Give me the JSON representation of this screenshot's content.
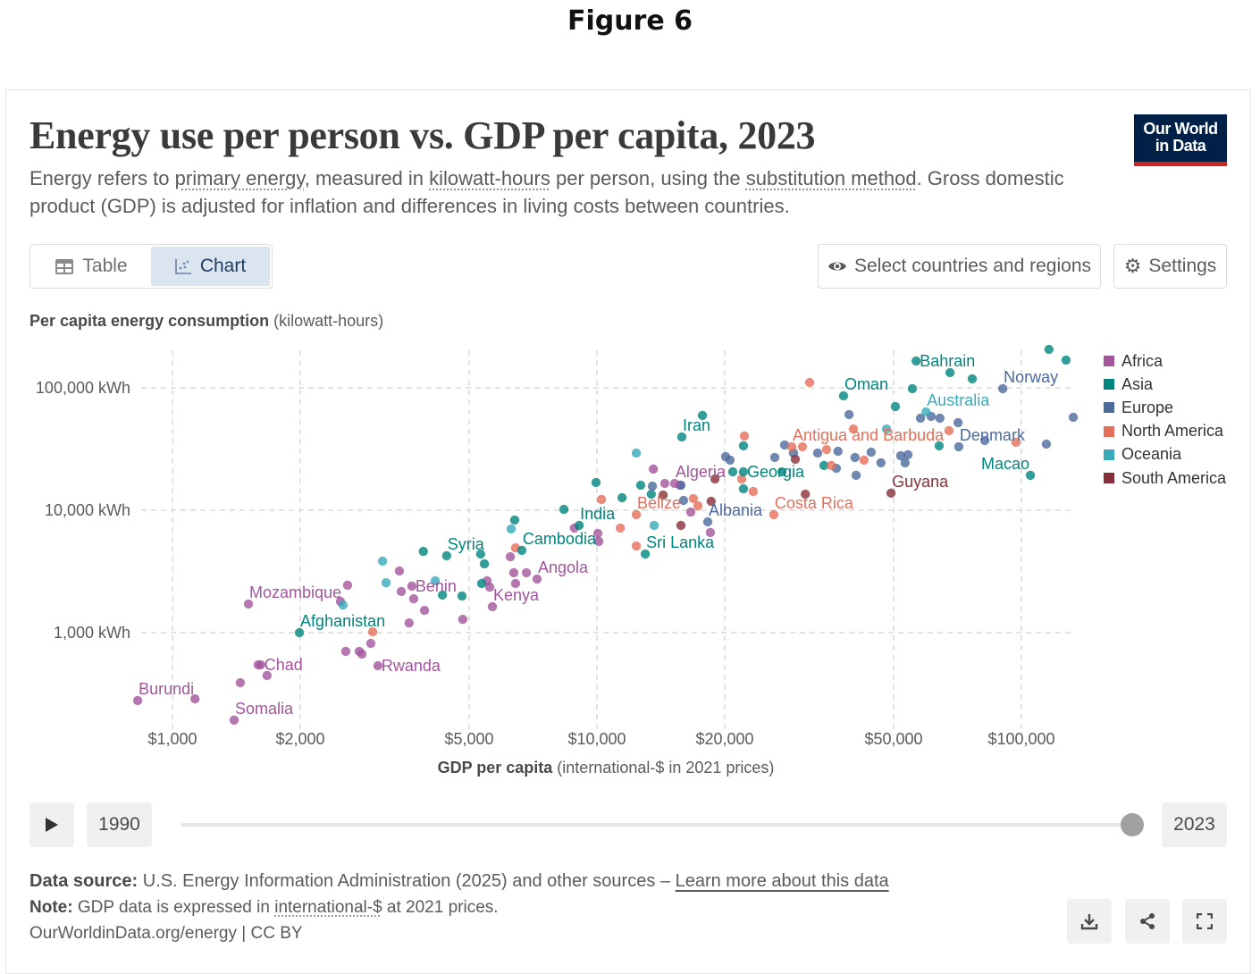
{
  "figure_label": "Figure 6",
  "logo": {
    "line1": "Our World",
    "line2": "in Data"
  },
  "header": {
    "title": "Energy use per person vs. GDP per capita, 2023",
    "subtitle_parts": [
      "Energy refers to ",
      "primary energy",
      ", measured in ",
      "kilowatt-hours",
      " per person, using the ",
      "substitution method",
      ". Gross domestic product (GDP) is adjusted for inflation and differences in living costs between countries."
    ]
  },
  "toolbar": {
    "table_label": "Table",
    "chart_label": "Chart",
    "select_label": "Select countries and regions",
    "settings_label": "Settings"
  },
  "colors": {
    "Africa": "#a2559c",
    "Asia": "#00847e",
    "Europe": "#4c6a9c",
    "North America": "#e56e5a",
    "Oceania": "#38aaba",
    "South America": "#883039",
    "accent": "#002147",
    "logo_bar": "#ce261e"
  },
  "chart_data": {
    "type": "scatter",
    "title": "Energy use per person vs. GDP per capita, 2023",
    "ylabel_bold": "Per capita energy consumption",
    "ylabel_unit": "(kilowatt-hours)",
    "xlabel_bold": "GDP per capita",
    "xlabel_unit": "(international-$ in 2021 prices)",
    "xscale": "log",
    "yscale": "log",
    "xlim": [
      780,
      150000
    ],
    "ylim": [
      180,
      220000
    ],
    "xticks": [
      {
        "v": 1000,
        "label": "$1,000"
      },
      {
        "v": 2000,
        "label": "$2,000"
      },
      {
        "v": 5000,
        "label": "$5,000"
      },
      {
        "v": 10000,
        "label": "$10,000"
      },
      {
        "v": 20000,
        "label": "$20,000"
      },
      {
        "v": 50000,
        "label": "$50,000"
      },
      {
        "v": 100000,
        "label": "$100,000"
      }
    ],
    "yticks": [
      {
        "v": 1000,
        "label": "1,000 kWh"
      },
      {
        "v": 10000,
        "label": "10,000 kWh"
      },
      {
        "v": 100000,
        "label": "100,000 kWh"
      }
    ],
    "grid": true,
    "legend_position": "right",
    "legend": [
      "Africa",
      "Asia",
      "Europe",
      "North America",
      "Oceania",
      "South America"
    ],
    "labeled_points": [
      {
        "name": "Burundi",
        "region": "Africa",
        "gdp": 828,
        "energy": 279,
        "label_pos": "above"
      },
      {
        "name": "Somalia",
        "region": "Africa",
        "gdp": 1397,
        "energy": 193,
        "label_pos": "above"
      },
      {
        "name": "Chad",
        "region": "Africa",
        "gdp": 1614,
        "energy": 546,
        "label_pos": "right"
      },
      {
        "name": "Mozambique",
        "region": "Africa",
        "gdp": 1510,
        "energy": 1714,
        "label_pos": "above"
      },
      {
        "name": "Afghanistan",
        "region": "Asia",
        "gdp": 1991,
        "energy": 1000,
        "label_pos": "above"
      },
      {
        "name": "Rwanda",
        "region": "Africa",
        "gdp": 3048,
        "energy": 537,
        "label_pos": "right"
      },
      {
        "name": "Benin",
        "region": "Africa",
        "gdp": 3664,
        "energy": 2400,
        "label_pos": "right"
      },
      {
        "name": "Kenya",
        "region": "Africa",
        "gdp": 5672,
        "energy": 1630,
        "label_pos": "above"
      },
      {
        "name": "Syria",
        "region": "Asia",
        "gdp": 4425,
        "energy": 4250,
        "label_pos": "above"
      },
      {
        "name": "Angola",
        "region": "Africa",
        "gdp": 7227,
        "energy": 2742,
        "label_pos": "above"
      },
      {
        "name": "Cambodia",
        "region": "Asia",
        "gdp": 6653,
        "energy": 4700,
        "label_pos": "above"
      },
      {
        "name": "India",
        "region": "Asia",
        "gdp": 9080,
        "energy": 7520,
        "label_pos": "above"
      },
      {
        "name": "Sri Lanka",
        "region": "Asia",
        "gdp": 13000,
        "energy": 4390,
        "label_pos": "above"
      },
      {
        "name": "Belize",
        "region": "North America",
        "gdp": 12380,
        "energy": 9200,
        "label_pos": "above"
      },
      {
        "name": "Albania",
        "region": "Europe",
        "gdp": 18240,
        "energy": 8040,
        "label_pos": "above"
      },
      {
        "name": "Algeria",
        "region": "Africa",
        "gdp": 15240,
        "energy": 16560,
        "label_pos": "above"
      },
      {
        "name": "Georgia",
        "region": "Asia",
        "gdp": 22140,
        "energy": 20600,
        "label_pos": "right"
      },
      {
        "name": "Iran",
        "region": "Asia",
        "gdp": 15850,
        "energy": 39700,
        "label_pos": "above"
      },
      {
        "name": "Costa Rica",
        "region": "North America",
        "gdp": 26100,
        "energy": 9200,
        "label_pos": "above"
      },
      {
        "name": "Antigua and Barbuda",
        "region": "North America",
        "gdp": 28770,
        "energy": 33000,
        "label_pos": "above"
      },
      {
        "name": "Guyana",
        "region": "South America",
        "gdp": 49300,
        "energy": 13800,
        "label_pos": "above"
      },
      {
        "name": "Oman",
        "region": "Asia",
        "gdp": 38100,
        "energy": 86000,
        "label_pos": "above"
      },
      {
        "name": "Bahrain",
        "region": "Asia",
        "gdp": 56500,
        "energy": 165600,
        "label_pos": "right"
      },
      {
        "name": "Norway",
        "region": "Europe",
        "gdp": 90400,
        "energy": 98400,
        "label_pos": "above"
      },
      {
        "name": "Australia",
        "region": "Oceania",
        "gdp": 59600,
        "energy": 63500,
        "label_pos": "above"
      },
      {
        "name": "Denmark",
        "region": "Europe",
        "gdp": 71200,
        "energy": 33000,
        "label_pos": "above"
      },
      {
        "name": "Macao",
        "region": "Asia",
        "gdp": 105000,
        "energy": 19300,
        "label_pos": "above-left"
      }
    ],
    "points": [
      {
        "region": "Africa",
        "gdp": 1130,
        "energy": 288
      },
      {
        "region": "Africa",
        "gdp": 1445,
        "energy": 390
      },
      {
        "region": "Africa",
        "gdp": 1670,
        "energy": 447
      },
      {
        "region": "Africa",
        "gdp": 1592,
        "energy": 546
      },
      {
        "region": "Africa",
        "gdp": 2585,
        "energy": 2440
      },
      {
        "region": "Africa",
        "gdp": 2487,
        "energy": 1800
      },
      {
        "region": "Africa",
        "gdp": 2933,
        "energy": 817
      },
      {
        "region": "Africa",
        "gdp": 2560,
        "energy": 703
      },
      {
        "region": "Africa",
        "gdp": 2754,
        "energy": 703
      },
      {
        "region": "Africa",
        "gdp": 2795,
        "energy": 668
      },
      {
        "region": "Africa",
        "gdp": 3425,
        "energy": 3190
      },
      {
        "region": "Africa",
        "gdp": 3700,
        "energy": 1890
      },
      {
        "region": "Africa",
        "gdp": 3460,
        "energy": 2170
      },
      {
        "region": "Africa",
        "gdp": 3925,
        "energy": 1520
      },
      {
        "region": "Africa",
        "gdp": 3610,
        "energy": 1200
      },
      {
        "region": "Africa",
        "gdp": 4830,
        "energy": 1285
      },
      {
        "region": "Africa",
        "gdp": 5510,
        "energy": 2650
      },
      {
        "region": "Africa",
        "gdp": 5590,
        "energy": 2355
      },
      {
        "region": "Africa",
        "gdp": 6250,
        "energy": 4170
      },
      {
        "region": "Africa",
        "gdp": 6370,
        "energy": 3085
      },
      {
        "region": "Africa",
        "gdp": 6820,
        "energy": 3085
      },
      {
        "region": "Africa",
        "gdp": 6430,
        "energy": 2520
      },
      {
        "region": "Africa",
        "gdp": 8850,
        "energy": 7150
      },
      {
        "region": "Africa",
        "gdp": 10050,
        "energy": 6460
      },
      {
        "region": "Africa",
        "gdp": 10100,
        "energy": 5560
      },
      {
        "region": "Africa",
        "gdp": 13580,
        "energy": 21700
      },
      {
        "region": "Africa",
        "gdp": 14450,
        "energy": 16560
      },
      {
        "region": "Africa",
        "gdp": 16630,
        "energy": 9660
      },
      {
        "region": "Africa",
        "gdp": 18500,
        "energy": 6580
      },
      {
        "region": "Africa",
        "gdp": 15700,
        "energy": 16000
      },
      {
        "region": "Asia",
        "gdp": 3900,
        "energy": 4610
      },
      {
        "region": "Asia",
        "gdp": 4810,
        "energy": 1990
      },
      {
        "region": "Asia",
        "gdp": 4325,
        "energy": 2030
      },
      {
        "region": "Asia",
        "gdp": 5320,
        "energy": 4390
      },
      {
        "region": "Asia",
        "gdp": 5430,
        "energy": 3650
      },
      {
        "region": "Asia",
        "gdp": 5350,
        "energy": 2520
      },
      {
        "region": "Asia",
        "gdp": 6400,
        "energy": 8320
      },
      {
        "region": "Asia",
        "gdp": 8360,
        "energy": 10160
      },
      {
        "region": "Asia",
        "gdp": 9950,
        "energy": 16830
      },
      {
        "region": "Asia",
        "gdp": 11460,
        "energy": 12650
      },
      {
        "region": "Asia",
        "gdp": 12680,
        "energy": 16000
      },
      {
        "region": "Asia",
        "gdp": 13430,
        "energy": 13520
      },
      {
        "region": "Asia",
        "gdp": 17720,
        "energy": 59500
      },
      {
        "region": "Asia",
        "gdp": 22140,
        "energy": 33600
      },
      {
        "region": "Asia",
        "gdp": 22140,
        "energy": 14960
      },
      {
        "region": "Asia",
        "gdp": 20890,
        "energy": 20600
      },
      {
        "region": "Asia",
        "gdp": 50470,
        "energy": 70300
      },
      {
        "region": "Asia",
        "gdp": 55340,
        "energy": 98400
      },
      {
        "region": "Asia",
        "gdp": 116100,
        "energy": 206000
      },
      {
        "region": "Asia",
        "gdp": 127400,
        "energy": 168400
      },
      {
        "region": "Asia",
        "gdp": 76600,
        "energy": 118300
      },
      {
        "region": "Asia",
        "gdp": 67900,
        "energy": 133100
      },
      {
        "region": "Asia",
        "gdp": 64000,
        "energy": 33600
      },
      {
        "region": "Asia",
        "gdp": 34270,
        "energy": 23200
      },
      {
        "region": "Asia",
        "gdp": 27290,
        "energy": 20600
      },
      {
        "region": "Oceania",
        "gdp": 3126,
        "energy": 3840
      },
      {
        "region": "Oceania",
        "gdp": 3186,
        "energy": 2560
      },
      {
        "region": "Oceania",
        "gdp": 2523,
        "energy": 1680
      },
      {
        "region": "Oceania",
        "gdp": 4160,
        "energy": 2650
      },
      {
        "region": "Oceania",
        "gdp": 6280,
        "energy": 7030
      },
      {
        "region": "Oceania",
        "gdp": 12380,
        "energy": 29300
      },
      {
        "region": "Oceania",
        "gdp": 13640,
        "energy": 7520
      },
      {
        "region": "Oceania",
        "gdp": 48100,
        "energy": 46100
      },
      {
        "region": "Europe",
        "gdp": 13510,
        "energy": 15730
      },
      {
        "region": "Europe",
        "gdp": 15770,
        "energy": 16000
      },
      {
        "region": "Europe",
        "gdp": 20100,
        "energy": 27400
      },
      {
        "region": "Europe",
        "gdp": 20590,
        "energy": 25650
      },
      {
        "region": "Europe",
        "gdp": 26240,
        "energy": 26980
      },
      {
        "region": "Europe",
        "gdp": 27680,
        "energy": 34100
      },
      {
        "region": "Europe",
        "gdp": 29050,
        "energy": 29300
      },
      {
        "region": "Europe",
        "gdp": 33110,
        "energy": 29300
      },
      {
        "region": "Europe",
        "gdp": 39260,
        "energy": 60400
      },
      {
        "region": "Europe",
        "gdp": 36980,
        "energy": 30300
      },
      {
        "region": "Europe",
        "gdp": 40550,
        "energy": 26980
      },
      {
        "region": "Europe",
        "gdp": 36640,
        "energy": 22000
      },
      {
        "region": "Europe",
        "gdp": 44260,
        "energy": 29800
      },
      {
        "region": "Europe",
        "gdp": 46670,
        "energy": 24400
      },
      {
        "region": "Europe",
        "gdp": 51960,
        "energy": 27860
      },
      {
        "region": "Europe",
        "gdp": 54040,
        "energy": 28400
      },
      {
        "region": "Europe",
        "gdp": 53210,
        "energy": 24400
      },
      {
        "region": "Europe",
        "gdp": 61290,
        "energy": 58400
      },
      {
        "region": "Europe",
        "gdp": 64270,
        "energy": 56500
      },
      {
        "region": "Europe",
        "gdp": 70930,
        "energy": 51900
      },
      {
        "region": "Europe",
        "gdp": 82000,
        "energy": 37100
      },
      {
        "region": "Europe",
        "gdp": 114500,
        "energy": 34700
      },
      {
        "region": "Europe",
        "gdp": 132500,
        "energy": 57400
      },
      {
        "region": "Europe",
        "gdp": 40800,
        "energy": 19300
      },
      {
        "region": "Europe",
        "gdp": 16000,
        "energy": 12030
      },
      {
        "region": "Europe",
        "gdp": 57850,
        "energy": 56500
      },
      {
        "region": "North America",
        "gdp": 2963,
        "energy": 1016
      },
      {
        "region": "North America",
        "gdp": 6430,
        "energy": 4930
      },
      {
        "region": "North America",
        "gdp": 10250,
        "energy": 12250
      },
      {
        "region": "North America",
        "gdp": 11350,
        "energy": 7150
      },
      {
        "region": "North America",
        "gdp": 12380,
        "energy": 5100
      },
      {
        "region": "North America",
        "gdp": 16870,
        "energy": 12450
      },
      {
        "region": "North America",
        "gdp": 17300,
        "energy": 10860
      },
      {
        "region": "North America",
        "gdp": 22250,
        "energy": 40400
      },
      {
        "region": "North America",
        "gdp": 21930,
        "energy": 18000
      },
      {
        "region": "North America",
        "gdp": 23350,
        "energy": 14220
      },
      {
        "region": "North America",
        "gdp": 31700,
        "energy": 110600
      },
      {
        "region": "North America",
        "gdp": 30480,
        "energy": 33000
      },
      {
        "region": "North America",
        "gdp": 34750,
        "energy": 31300
      },
      {
        "region": "North America",
        "gdp": 42580,
        "energy": 25650
      },
      {
        "region": "North America",
        "gdp": 35640,
        "energy": 23200
      },
      {
        "region": "North America",
        "gdp": 40200,
        "energy": 46100
      },
      {
        "region": "North America",
        "gdp": 67500,
        "energy": 44700
      },
      {
        "region": "North America",
        "gdp": 97100,
        "energy": 35900
      },
      {
        "region": "South America",
        "gdp": 14320,
        "energy": 13300
      },
      {
        "region": "South America",
        "gdp": 15770,
        "energy": 7520
      },
      {
        "region": "South America",
        "gdp": 18580,
        "energy": 11830
      },
      {
        "region": "South America",
        "gdp": 18970,
        "energy": 18000
      },
      {
        "region": "South America",
        "gdp": 29330,
        "energy": 26060
      },
      {
        "region": "South America",
        "gdp": 30970,
        "energy": 13520
      }
    ]
  },
  "timeline": {
    "start_year": "1990",
    "end_year": "2023",
    "selected_fraction": 1.0
  },
  "footer": {
    "source_label": "Data source:",
    "source_text": " U.S. Energy Information Administration (2025) and other sources – ",
    "source_link": "Learn more about this data",
    "note_label": "Note:",
    "note_text_1": " GDP data is expressed in ",
    "note_link": "international-$",
    "note_text_2": " at 2021 prices.",
    "credit": "OurWorldinData.org/energy | CC BY"
  }
}
